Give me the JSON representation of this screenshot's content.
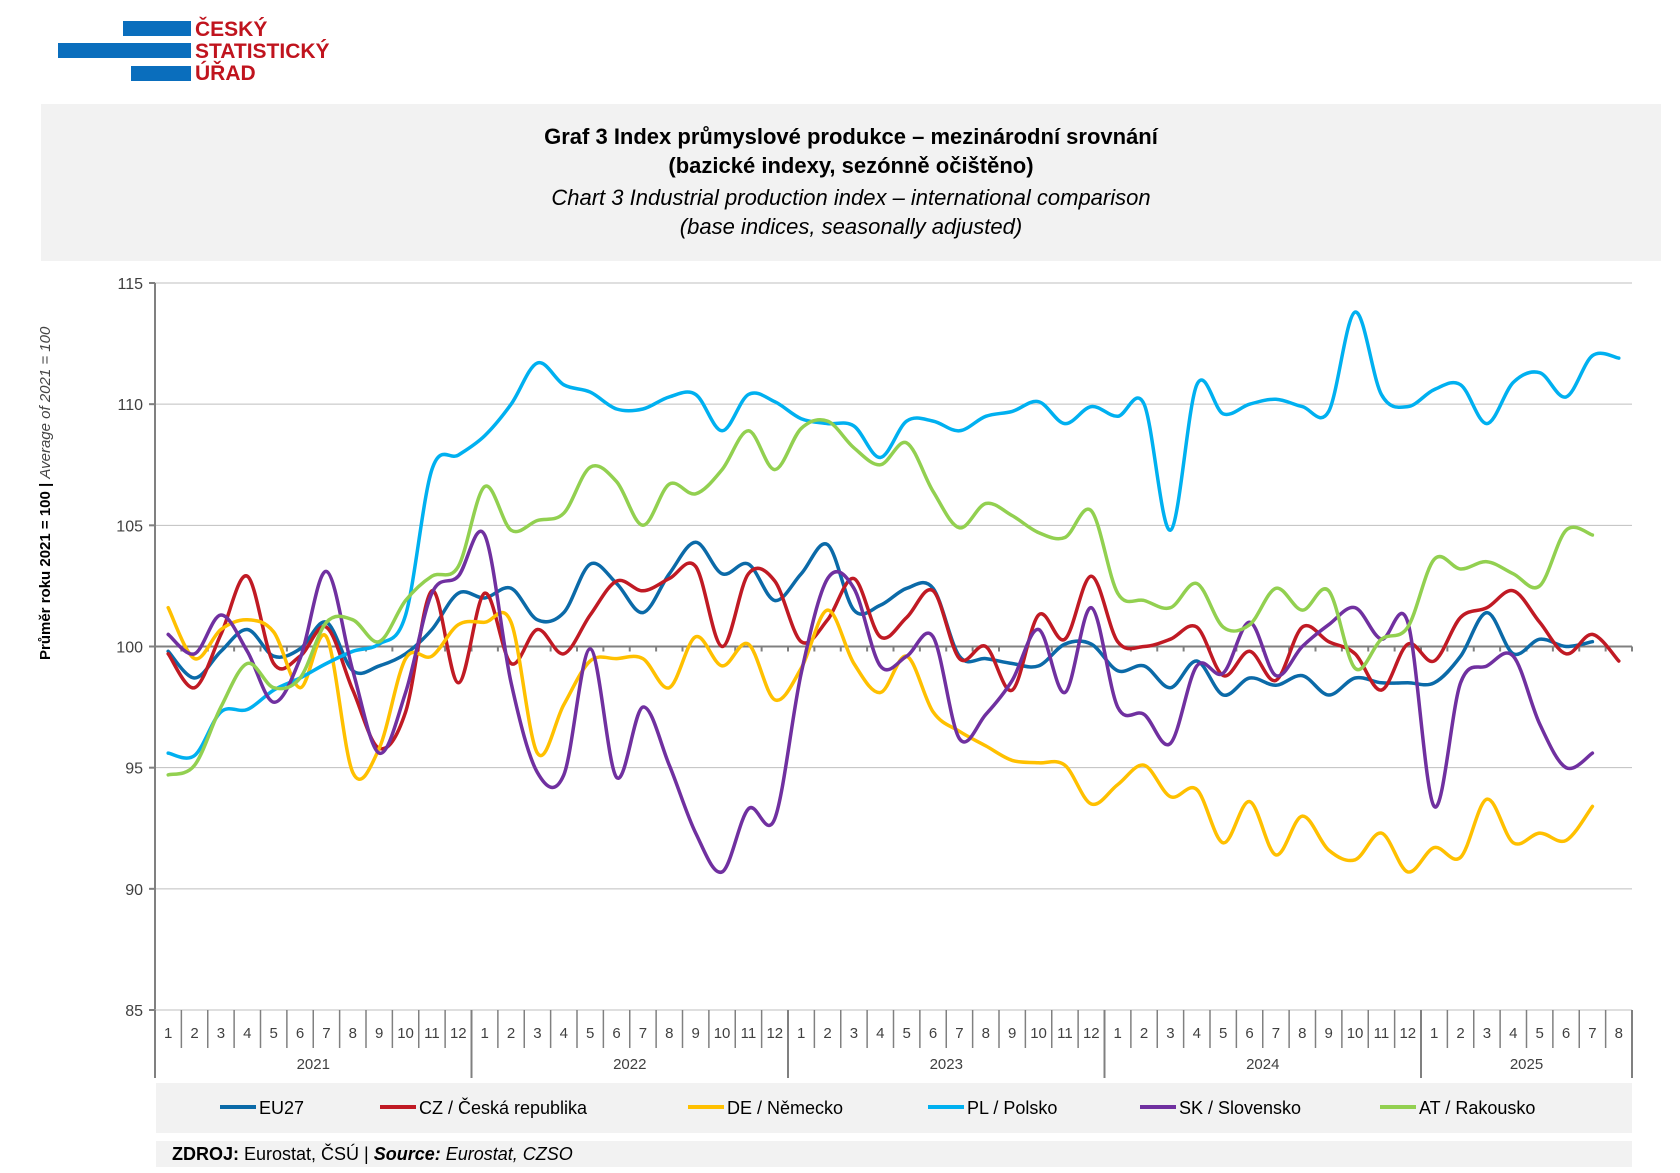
{
  "logo": {
    "lines": [
      "ČESKÝ",
      "STATISTICKÝ",
      "ÚŘAD"
    ],
    "bar_color": "#0a6ebd",
    "text_color": "#c0141e"
  },
  "header": {
    "title_cz_line1": "Graf 3 Index průmyslové produkce – mezinárodní srovnání",
    "title_cz_line2": "(bazické indexy, sezónně očištěno)",
    "title_en_line1": "Chart 3 Industrial production index – international comparison",
    "title_en_line2": "(base indices, seasonally adjusted)"
  },
  "axis": {
    "ylabel_cz": "Průměr roku 2021 = 100 | ",
    "ylabel_en": "Average of 2021 = 100"
  },
  "source": {
    "label_cz": "ZDROJ:",
    "text_cz": " Eurostat, ČSÚ | ",
    "label_en": "Source:",
    "text_en": " Eurostat, CZSO"
  },
  "chart_data": {
    "type": "line",
    "title": "Graf 3 Index průmyslové produkce – mezinárodní srovnání (bazické indexy, sezónně očištěno) / Chart 3 Industrial production index – international comparison (base indices, seasonally adjusted)",
    "ylabel": "Průměr roku 2021 = 100 | Average of 2021 = 100",
    "xlabel": "",
    "ylim": [
      85,
      115
    ],
    "yticks": [
      85,
      90,
      95,
      100,
      105,
      110,
      115
    ],
    "grid": true,
    "legend_position": "bottom",
    "years": [
      {
        "label": "2021",
        "months": 12
      },
      {
        "label": "2022",
        "months": 12
      },
      {
        "label": "2023",
        "months": 12
      },
      {
        "label": "2024",
        "months": 12
      },
      {
        "label": "2025",
        "months": 8
      }
    ],
    "month_labels": [
      "1",
      "2",
      "3",
      "4",
      "5",
      "6",
      "7",
      "8",
      "9",
      "10",
      "11",
      "12",
      "1",
      "2",
      "3",
      "4",
      "5",
      "6",
      "7",
      "8",
      "9",
      "10",
      "11",
      "12",
      "1",
      "2",
      "3",
      "4",
      "5",
      "6",
      "7",
      "8",
      "9",
      "10",
      "11",
      "12",
      "1",
      "2",
      "3",
      "4",
      "5",
      "6",
      "7",
      "8",
      "9",
      "10",
      "11",
      "12",
      "1",
      "2",
      "3",
      "4",
      "5",
      "6",
      "7",
      "8"
    ],
    "series": [
      {
        "name": "EU27",
        "color": "#0b6aa8",
        "values": [
          99.8,
          98.7,
          99.8,
          100.7,
          99.6,
          99.9,
          101.0,
          99.0,
          99.2,
          99.7,
          100.7,
          102.2,
          102.0,
          102.4,
          101.1,
          101.4,
          103.4,
          102.6,
          101.4,
          103.0,
          104.3,
          103.0,
          103.4,
          101.9,
          103.0,
          104.2,
          101.5,
          101.7,
          102.4,
          102.4,
          99.6,
          99.5,
          99.3,
          99.2,
          100.1,
          100.1,
          99.0,
          99.2,
          98.3,
          99.4,
          98.0,
          98.7,
          98.4,
          98.8,
          98.0,
          98.7,
          98.5,
          98.5,
          98.5,
          99.6,
          101.4,
          99.7,
          100.3,
          100.0,
          100.2
        ]
      },
      {
        "name": "CZ / Česká republika",
        "color": "#c01a24",
        "values": [
          99.7,
          98.3,
          100.5,
          102.9,
          99.3,
          99.6,
          100.8,
          98.2,
          95.8,
          97.3,
          102.3,
          98.5,
          102.2,
          99.3,
          100.7,
          99.7,
          101.3,
          102.7,
          102.3,
          102.8,
          103.3,
          100.0,
          103.0,
          102.7,
          100.2,
          101.1,
          102.8,
          100.4,
          101.2,
          102.3,
          99.5,
          100.0,
          98.2,
          101.3,
          100.3,
          102.9,
          100.2,
          100.0,
          100.3,
          100.8,
          98.8,
          99.8,
          98.6,
          100.8,
          100.2,
          99.7,
          98.2,
          100.1,
          99.4,
          101.2,
          101.6,
          102.3,
          101.0,
          99.7,
          100.5,
          99.4
        ]
      },
      {
        "name": "DE / Německo",
        "color": "#ffc000",
        "values": [
          101.6,
          99.5,
          100.7,
          101.1,
          100.6,
          98.3,
          100.4,
          94.8,
          95.8,
          99.5,
          99.6,
          100.9,
          101.0,
          101.0,
          95.6,
          97.6,
          99.4,
          99.5,
          99.5,
          98.3,
          100.4,
          99.2,
          100.1,
          97.8,
          99.1,
          101.5,
          99.3,
          98.1,
          99.6,
          97.3,
          96.5,
          95.9,
          95.3,
          95.2,
          95.1,
          93.5,
          94.3,
          95.1,
          93.8,
          94.1,
          91.9,
          93.6,
          91.4,
          93.0,
          91.6,
          91.2,
          92.3,
          90.7,
          91.7,
          91.3,
          93.7,
          91.9,
          92.3,
          92.0,
          93.4
        ]
      },
      {
        "name": "PL / Polsko",
        "color": "#00b0f0",
        "values": [
          95.6,
          95.5,
          97.3,
          97.4,
          98.2,
          98.7,
          99.3,
          99.8,
          100.1,
          101.3,
          107.3,
          107.9,
          108.7,
          110.0,
          111.7,
          110.8,
          110.5,
          109.8,
          109.8,
          110.3,
          110.4,
          108.9,
          110.4,
          110.1,
          109.4,
          109.2,
          109.1,
          107.8,
          109.3,
          109.3,
          108.9,
          109.5,
          109.7,
          110.1,
          109.2,
          109.9,
          109.5,
          110.0,
          104.8,
          110.8,
          109.6,
          110.0,
          110.2,
          109.9,
          109.7,
          113.8,
          110.4,
          109.9,
          110.6,
          110.8,
          109.2,
          110.9,
          111.3,
          110.3,
          112.0,
          111.9
        ]
      },
      {
        "name": "SK / Slovensko",
        "color": "#7030a0",
        "values": [
          100.5,
          99.7,
          101.3,
          99.8,
          97.7,
          99.5,
          103.1,
          99.0,
          95.6,
          98.1,
          102.2,
          102.9,
          104.6,
          98.5,
          94.8,
          94.7,
          99.9,
          94.6,
          97.5,
          95.1,
          92.3,
          90.7,
          93.3,
          92.9,
          98.9,
          102.8,
          102.4,
          99.2,
          99.6,
          100.4,
          96.2,
          97.2,
          98.6,
          100.7,
          98.1,
          101.6,
          97.5,
          97.2,
          96.0,
          99.2,
          98.9,
          101.0,
          98.8,
          100.0,
          100.9,
          101.6,
          100.3,
          101.0,
          93.4,
          98.5,
          99.2,
          99.6,
          96.8,
          95.0,
          95.6
        ]
      },
      {
        "name": "AT / Rakousko",
        "color": "#92d050",
        "values": [
          94.7,
          95.1,
          97.5,
          99.3,
          98.3,
          98.7,
          101.0,
          101.1,
          100.2,
          101.9,
          102.9,
          103.3,
          106.6,
          104.8,
          105.2,
          105.5,
          107.4,
          106.8,
          105.0,
          106.7,
          106.3,
          107.3,
          108.9,
          107.3,
          109.0,
          109.3,
          108.2,
          107.5,
          108.4,
          106.4,
          104.9,
          105.9,
          105.4,
          104.7,
          104.5,
          105.6,
          102.2,
          101.9,
          101.6,
          102.6,
          100.8,
          100.9,
          102.4,
          101.5,
          102.3,
          99.1,
          100.3,
          100.8,
          103.6,
          103.2,
          103.5,
          103.0,
          102.5,
          104.8,
          104.6
        ]
      }
    ]
  }
}
